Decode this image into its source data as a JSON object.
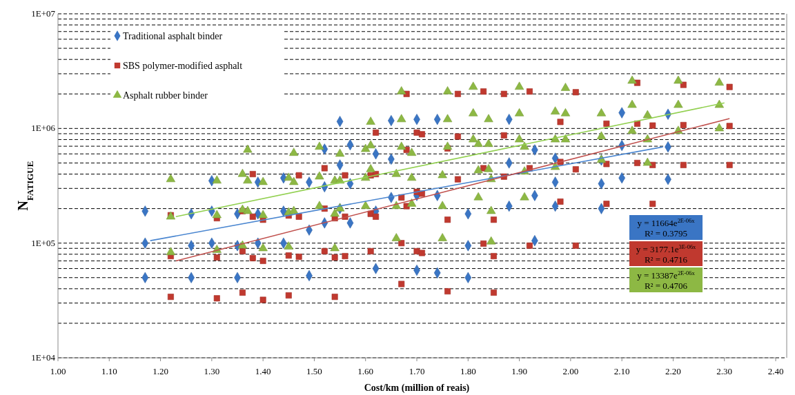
{
  "chart_data": {
    "type": "scatter",
    "xlabel": "Cost/km (million of  reais)",
    "ylabel": "N$_{FATIGUE}$",
    "log": "y",
    "grid": "y",
    "legend": "top left",
    "xlim": [
      1.0,
      2.4
    ],
    "xticks": [
      {
        "value": 1.0,
        "label": "1.00"
      },
      {
        "value": 1.1,
        "label": "1.10"
      },
      {
        "value": 1.2,
        "label": "1.20"
      },
      {
        "value": 1.3,
        "label": "1.30"
      },
      {
        "value": 1.4,
        "label": "1.40"
      },
      {
        "value": 1.5,
        "label": "1.50"
      },
      {
        "value": 1.6,
        "label": "1.60"
      },
      {
        "value": 1.7,
        "label": "1.70"
      },
      {
        "value": 1.8,
        "label": "1.80"
      },
      {
        "value": 1.9,
        "label": "1.90"
      },
      {
        "value": 2.0,
        "label": "2.00"
      },
      {
        "value": 2.1,
        "label": "2.10"
      },
      {
        "value": 2.2,
        "label": "2.20"
      },
      {
        "value": 2.3,
        "label": "2.30"
      },
      {
        "value": 2.4,
        "label": "2.40"
      }
    ],
    "ylim": [
      10000,
      10000000
    ],
    "yticks": [
      {
        "value": 10000,
        "label": "1E+04"
      },
      {
        "value": 20000,
        "label": null
      },
      {
        "value": 30000,
        "label": null
      },
      {
        "value": 40000,
        "label": null
      },
      {
        "value": 50000,
        "label": null
      },
      {
        "value": 60000,
        "label": null
      },
      {
        "value": 70000,
        "label": null
      },
      {
        "value": 80000,
        "label": null
      },
      {
        "value": 90000,
        "label": null
      },
      {
        "value": 100000,
        "label": "1E+05"
      },
      {
        "value": 200000,
        "label": null
      },
      {
        "value": 300000,
        "label": null
      },
      {
        "value": 400000,
        "label": null
      },
      {
        "value": 500000,
        "label": null
      },
      {
        "value": 600000,
        "label": null
      },
      {
        "value": 700000,
        "label": null
      },
      {
        "value": 800000,
        "label": null
      },
      {
        "value": 900000,
        "label": null
      },
      {
        "value": 1000000,
        "label": "1E+06"
      },
      {
        "value": 2000000,
        "label": null
      },
      {
        "value": 3000000,
        "label": null
      },
      {
        "value": 4000000,
        "label": null
      },
      {
        "value": 5000000,
        "label": null
      },
      {
        "value": 6000000,
        "label": null
      },
      {
        "value": 7000000,
        "label": null
      },
      {
        "value": 8000000,
        "label": null
      },
      {
        "value": 9000000,
        "label": null
      },
      {
        "value": 10000000,
        "label": "1E+07"
      }
    ],
    "annotations": [
      "y = 11664e$^{2E-06x}$",
      "R² = 0.3795",
      "y = 3177.1e$^{3E-06x}$",
      "R² = 0.4716",
      "y = 13387e$^{2E-06x}$",
      "R² = 0.4706"
    ],
    "series": [
      {
        "name": "Traditional asphalt binder",
        "marker": "diamond",
        "color": "#3a75c4",
        "x": [
          1.17,
          1.17,
          1.17,
          1.26,
          1.26,
          1.26,
          1.3,
          1.3,
          1.3,
          1.35,
          1.35,
          1.35,
          1.39,
          1.39,
          1.39,
          1.44,
          1.44,
          1.44,
          1.49,
          1.49,
          1.49,
          1.52,
          1.52,
          1.52,
          1.55,
          1.55,
          1.55,
          1.57,
          1.57,
          1.57,
          1.62,
          1.62,
          1.62,
          1.65,
          1.65,
          1.65,
          1.7,
          1.7,
          1.7,
          1.74,
          1.74,
          1.74,
          1.8,
          1.8,
          1.8,
          1.88,
          1.88,
          1.88,
          1.93,
          1.93,
          1.93,
          1.97,
          1.97,
          1.97,
          2.06,
          2.06,
          2.06,
          2.1,
          2.1,
          2.1,
          2.19,
          2.19,
          2.19
        ],
        "values": [
          190000,
          100000,
          50000,
          180000,
          95000,
          50000,
          350000,
          190000,
          100000,
          180000,
          95000,
          50000,
          340000,
          180000,
          100000,
          370000,
          190000,
          100000,
          340000,
          130000,
          52000,
          660000,
          310000,
          150000,
          1150000,
          480000,
          200000,
          720000,
          330000,
          150000,
          600000,
          190000,
          60000,
          1170000,
          540000,
          250000,
          1200000,
          260000,
          58000,
          1200000,
          260000,
          55000,
          180000,
          95000,
          50000,
          1200000,
          500000,
          210000,
          650000,
          260000,
          105000,
          550000,
          340000,
          210000,
          530000,
          330000,
          200000,
          1370000,
          710000,
          370000,
          1330000,
          690000,
          360000
        ]
      },
      {
        "name": "SBS polymer-modified asphalt",
        "marker": "square",
        "color": "#c0392f",
        "x": [
          1.22,
          1.22,
          1.22,
          1.31,
          1.31,
          1.31,
          1.36,
          1.36,
          1.36,
          1.38,
          1.38,
          1.38,
          1.4,
          1.4,
          1.4,
          1.45,
          1.45,
          1.45,
          1.47,
          1.47,
          1.47,
          1.52,
          1.52,
          1.52,
          1.54,
          1.54,
          1.54,
          1.56,
          1.56,
          1.56,
          1.61,
          1.61,
          1.61,
          1.62,
          1.62,
          1.62,
          1.67,
          1.67,
          1.67,
          1.68,
          1.68,
          1.68,
          1.7,
          1.7,
          1.7,
          1.71,
          1.71,
          1.71,
          1.76,
          1.76,
          1.76,
          1.78,
          1.78,
          1.78,
          1.83,
          1.83,
          1.83,
          1.85,
          1.85,
          1.85,
          1.87,
          1.87,
          1.87,
          1.92,
          1.92,
          1.92,
          1.98,
          1.98,
          1.98,
          2.01,
          2.01,
          2.01,
          2.07,
          2.07,
          2.07,
          2.13,
          2.13,
          2.13,
          2.16,
          2.16,
          2.16,
          2.22,
          2.22,
          2.22,
          2.31,
          2.31,
          2.31
        ],
        "values": [
          175000,
          77000,
          34000,
          165000,
          75000,
          33000,
          190000,
          85000,
          37000,
          400000,
          170000,
          74000,
          160000,
          70000,
          32000,
          174000,
          78000,
          35000,
          390000,
          170000,
          76000,
          450000,
          200000,
          85000,
          165000,
          75000,
          34000,
          390000,
          170000,
          77000,
          390000,
          180000,
          85000,
          920000,
          400000,
          170000,
          250000,
          100000,
          44000,
          2000000,
          650000,
          210000,
          920000,
          280000,
          85000,
          890000,
          270000,
          82000,
          670000,
          160000,
          38000,
          2000000,
          850000,
          360000,
          2100000,
          450000,
          99000,
          160000,
          77000,
          37000,
          2000000,
          870000,
          380000,
          2100000,
          450000,
          95000,
          1140000,
          510000,
          230000,
          2070000,
          440000,
          95000,
          1100000,
          490000,
          220000,
          2500000,
          1100000,
          500000,
          1060000,
          480000,
          220000,
          2400000,
          1070000,
          480000,
          2300000,
          1050000,
          480000
        ]
      },
      {
        "name": "Asphalt rubber binder",
        "marker": "triangle",
        "color": "#8db844",
        "x": [
          1.22,
          1.22,
          1.22,
          1.31,
          1.31,
          1.31,
          1.36,
          1.36,
          1.36,
          1.37,
          1.37,
          1.37,
          1.4,
          1.4,
          1.4,
          1.45,
          1.45,
          1.45,
          1.46,
          1.46,
          1.46,
          1.51,
          1.51,
          1.51,
          1.54,
          1.54,
          1.54,
          1.55,
          1.55,
          1.55,
          1.6,
          1.6,
          1.6,
          1.61,
          1.61,
          1.61,
          1.66,
          1.66,
          1.66,
          1.67,
          1.67,
          1.67,
          1.69,
          1.69,
          1.69,
          1.75,
          1.75,
          1.75,
          1.76,
          1.76,
          1.76,
          1.81,
          1.81,
          1.81,
          1.82,
          1.82,
          1.82,
          1.84,
          1.84,
          1.84,
          1.845,
          1.845,
          1.845,
          1.9,
          1.9,
          1.9,
          1.91,
          1.91,
          1.91,
          1.97,
          1.97,
          1.97,
          1.99,
          1.99,
          1.99,
          2.06,
          2.06,
          2.06,
          2.12,
          2.12,
          2.12,
          2.15,
          2.15,
          2.15,
          2.21,
          2.21,
          2.21,
          2.29,
          2.29,
          2.29
        ],
        "values": [
          360000,
          170000,
          83000,
          350000,
          175000,
          87000,
          400000,
          195000,
          95000,
          650000,
          350000,
          190000,
          340000,
          175000,
          90000,
          370000,
          185000,
          93000,
          610000,
          340000,
          190000,
          690000,
          380000,
          210000,
          350000,
          180000,
          90000,
          600000,
          350000,
          200000,
          660000,
          370000,
          210000,
          1140000,
          710000,
          440000,
          400000,
          210000,
          110000,
          2100000,
          1200000,
          690000,
          610000,
          370000,
          220000,
          390000,
          210000,
          110000,
          2100000,
          1200000,
          690000,
          2300000,
          1350000,
          800000,
          730000,
          430000,
          250000,
          1200000,
          730000,
          440000,
          360000,
          190000,
          103000,
          2300000,
          1350000,
          800000,
          690000,
          420000,
          250000,
          1400000,
          800000,
          460000,
          2250000,
          1350000,
          800000,
          1350000,
          850000,
          530000,
          2600000,
          1600000,
          950000,
          1300000,
          800000,
          500000,
          2600000,
          1600000,
          950000,
          2500000,
          1600000,
          1000000
        ]
      },
      {
        "type": "line",
        "color": "#4a86d0",
        "x": [
          1.18,
          2.18
        ],
        "values": [
          105000,
          690000
        ]
      },
      {
        "type": "line",
        "color": "#c0504d",
        "x": [
          1.23,
          2.31
        ],
        "values": [
          70000,
          1220000
        ]
      },
      {
        "type": "line",
        "color": "#92d050",
        "x": [
          1.23,
          2.3
        ],
        "values": [
          170000,
          1670000
        ]
      }
    ]
  }
}
